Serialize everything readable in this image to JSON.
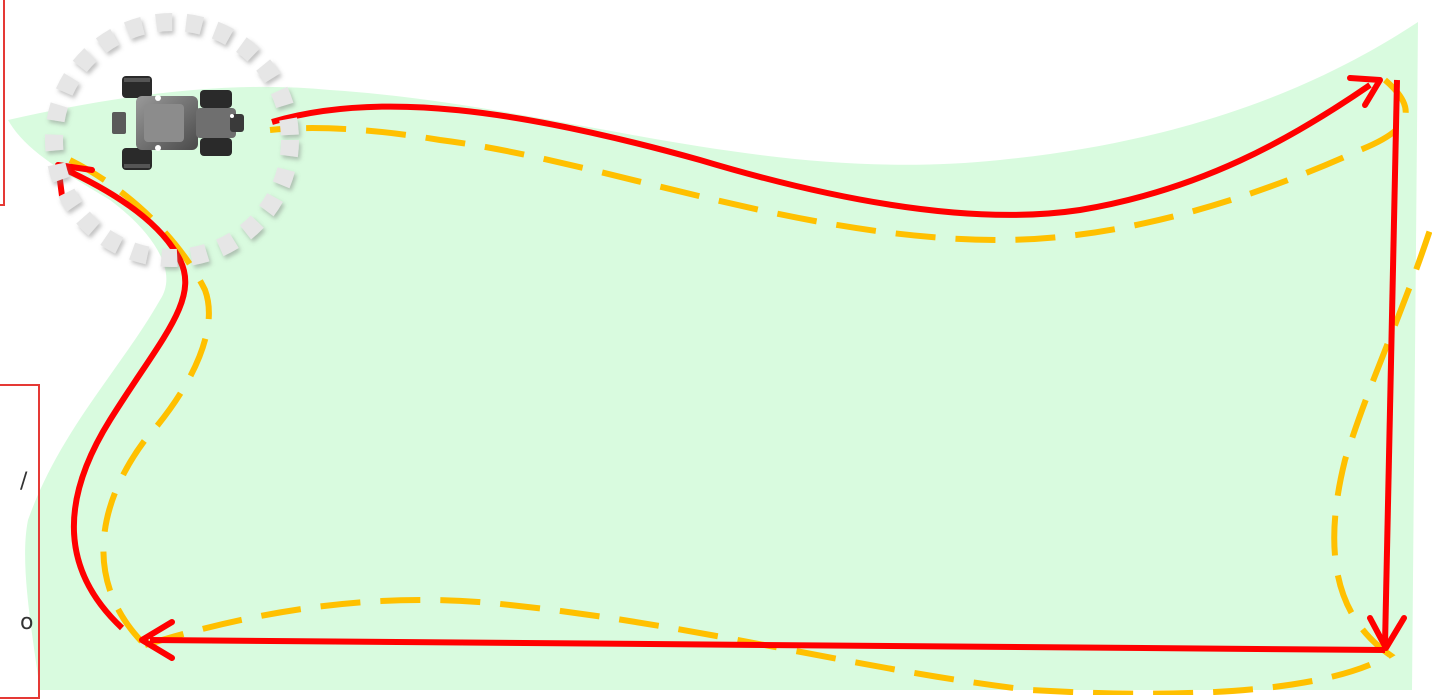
{
  "colors": {
    "field_fill": "#d9fbdf",
    "planned_path": "#ff0000",
    "field_boundary": "#ffc000",
    "robot_range": "#e6e6e6",
    "frame_border": "#e53935"
  },
  "icons": {
    "robot": "robot-tractor-icon",
    "range": "dotted-circle"
  },
  "side_glyphs": [
    "/",
    "o"
  ]
}
